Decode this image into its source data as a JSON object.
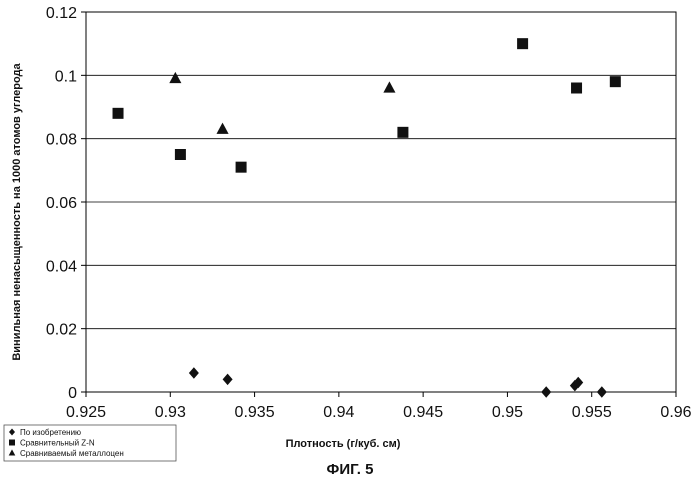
{
  "chart_data": {
    "type": "scatter",
    "title": "",
    "xlabel": "Плотность (г/куб. см)",
    "ylabel": "Винильная ненасыщенность на 1000 атомов углерода",
    "xlim": [
      0.925,
      0.96
    ],
    "ylim": [
      0,
      0.12
    ],
    "x_ticks": [
      "0.925",
      "0.93",
      "0.935",
      "0.94",
      "0.945",
      "0.95",
      "0.955",
      "0.96"
    ],
    "y_ticks": [
      "0",
      "0.02",
      "0.04",
      "0.06",
      "0.08",
      "0.1",
      "0.12"
    ],
    "grid": "horizontal",
    "legend_position": "bottom-left",
    "figure_label": "ФИГ. 5",
    "series": [
      {
        "name": "По изобретению",
        "marker": "diamond",
        "points": [
          [
            0.9314,
            0.006
          ],
          [
            0.9334,
            0.004
          ],
          [
            0.9523,
            0.0
          ],
          [
            0.954,
            0.002
          ],
          [
            0.9542,
            0.003
          ],
          [
            0.9556,
            0.0
          ]
        ]
      },
      {
        "name": "Сравнительный Z-N",
        "marker": "square",
        "points": [
          [
            0.9269,
            0.088
          ],
          [
            0.9306,
            0.075
          ],
          [
            0.9342,
            0.071
          ],
          [
            0.9438,
            0.082
          ],
          [
            0.9509,
            0.11
          ],
          [
            0.9541,
            0.096
          ],
          [
            0.9564,
            0.098
          ]
        ]
      },
      {
        "name": "Сравниваемый металлоцен",
        "marker": "triangle",
        "points": [
          [
            0.9303,
            0.099
          ],
          [
            0.9331,
            0.083
          ],
          [
            0.943,
            0.096
          ]
        ]
      }
    ]
  },
  "colors": {
    "marker": "#111111",
    "grid": "#000000",
    "axis": "#000000"
  }
}
